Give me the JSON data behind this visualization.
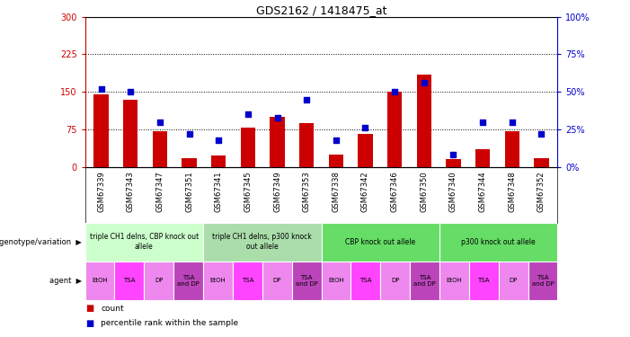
{
  "title": "GDS2162 / 1418475_at",
  "samples": [
    "GSM67339",
    "GSM67343",
    "GSM67347",
    "GSM67351",
    "GSM67341",
    "GSM67345",
    "GSM67349",
    "GSM67353",
    "GSM67338",
    "GSM67342",
    "GSM67346",
    "GSM67350",
    "GSM67340",
    "GSM67344",
    "GSM67348",
    "GSM67352"
  ],
  "counts": [
    145,
    135,
    72,
    18,
    22,
    78,
    100,
    88,
    25,
    65,
    150,
    185,
    15,
    35,
    72,
    18
  ],
  "percentiles": [
    52,
    50,
    30,
    22,
    18,
    35,
    33,
    45,
    18,
    26,
    50,
    56,
    8,
    30,
    30,
    22
  ],
  "ylim_left": [
    0,
    300
  ],
  "ylim_right": [
    0,
    100
  ],
  "yticks_left": [
    0,
    75,
    150,
    225,
    300
  ],
  "yticks_right": [
    0,
    25,
    50,
    75,
    100
  ],
  "bar_color": "#cc0000",
  "dot_color": "#0000cc",
  "genotype_groups": [
    {
      "label": "triple CH1 delns, CBP knock out\nallele",
      "start": 0,
      "end": 4,
      "color": "#ccffcc"
    },
    {
      "label": "triple CH1 delns, p300 knock\nout allele",
      "start": 4,
      "end": 8,
      "color": "#aaddaa"
    },
    {
      "label": "CBP knock out allele",
      "start": 8,
      "end": 12,
      "color": "#66dd66"
    },
    {
      "label": "p300 knock out allele",
      "start": 12,
      "end": 16,
      "color": "#66dd66"
    }
  ],
  "agent_labels": [
    "EtOH",
    "TSA",
    "DP",
    "TSA\nand DP",
    "EtOH",
    "TSA",
    "DP",
    "TSA\nand DP",
    "EtOH",
    "TSA",
    "DP",
    "TSA\nand DP",
    "EtOH",
    "TSA",
    "DP",
    "TSA\nand DP"
  ],
  "bg_color": "#ffffff",
  "tick_color_left": "#cc0000",
  "tick_color_right": "#0000cc",
  "xtick_bg": "#cccccc",
  "geno_colors": [
    "#ccffcc",
    "#aaddaa",
    "#66dd66",
    "#66dd66"
  ],
  "agent_col_etoh": "#ee88ee",
  "agent_col_tsa": "#ff44ff",
  "agent_col_dp": "#ee88ee",
  "agent_col_tsadp": "#bb44bb",
  "row_label_color": "#000000",
  "legend_bar_color": "#cc0000",
  "legend_dot_color": "#0000cc"
}
